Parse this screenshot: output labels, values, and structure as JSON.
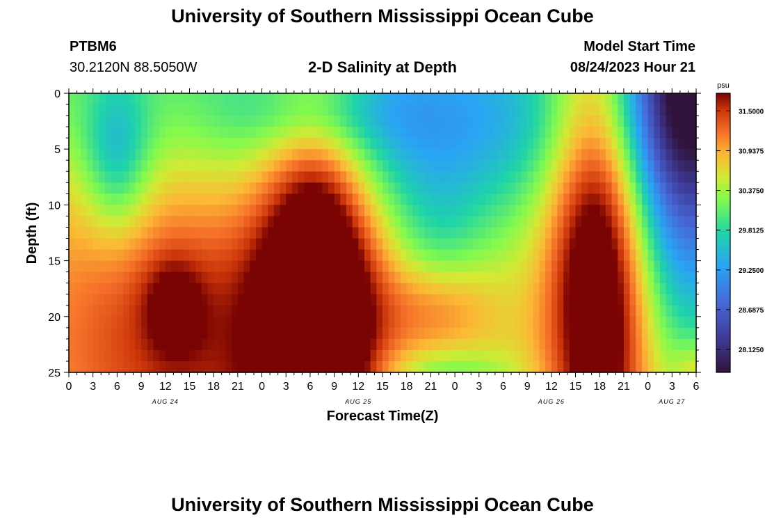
{
  "header": {
    "title": "University of Southern Mississippi Ocean Cube",
    "station_id": "PTBM6",
    "coordinates": "30.2120N  88.5050W",
    "subtitle": "2-D Salinity at Depth",
    "model_start_label": "Model Start Time",
    "model_start_value": "08/24/2023 Hour 21"
  },
  "footer": {
    "title": "University of Southern Mississippi Ocean Cube"
  },
  "chart_data": {
    "type": "heatmap",
    "title": "2-D Salinity at Depth",
    "xlabel": "Forecast Time(Z)",
    "ylabel": "Depth (ft)",
    "x_start_hour": 0,
    "x_end_hour": 78,
    "x_ticks": [
      {
        "hour": 0,
        "label": "0"
      },
      {
        "hour": 3,
        "label": "3"
      },
      {
        "hour": 6,
        "label": "6"
      },
      {
        "hour": 9,
        "label": "9"
      },
      {
        "hour": 12,
        "label": "12"
      },
      {
        "hour": 15,
        "label": "15"
      },
      {
        "hour": 18,
        "label": "18"
      },
      {
        "hour": 21,
        "label": "21"
      },
      {
        "hour": 24,
        "label": "0"
      },
      {
        "hour": 27,
        "label": "3"
      },
      {
        "hour": 30,
        "label": "6"
      },
      {
        "hour": 33,
        "label": "9"
      },
      {
        "hour": 36,
        "label": "12"
      },
      {
        "hour": 39,
        "label": "15"
      },
      {
        "hour": 42,
        "label": "18"
      },
      {
        "hour": 45,
        "label": "21"
      },
      {
        "hour": 48,
        "label": "0"
      },
      {
        "hour": 51,
        "label": "3"
      },
      {
        "hour": 54,
        "label": "6"
      },
      {
        "hour": 57,
        "label": "9"
      },
      {
        "hour": 60,
        "label": "12"
      },
      {
        "hour": 63,
        "label": "15"
      },
      {
        "hour": 66,
        "label": "18"
      },
      {
        "hour": 69,
        "label": "21"
      },
      {
        "hour": 72,
        "label": "0"
      },
      {
        "hour": 75,
        "label": "3"
      },
      {
        "hour": 78,
        "label": "6"
      }
    ],
    "day_labels": [
      {
        "hour": 12,
        "label": "AUG 24"
      },
      {
        "hour": 36,
        "label": "AUG 25"
      },
      {
        "hour": 60,
        "label": "AUG 26"
      },
      {
        "hour": 75,
        "label": "AUG 27"
      }
    ],
    "y_ticks": [
      0,
      5,
      10,
      15,
      20,
      25
    ],
    "ylim": [
      0,
      25
    ],
    "colorbar": {
      "unit": "psu",
      "vmin": 27.8,
      "vmax": 31.75,
      "tick_values": [
        31.5,
        30.9375,
        30.375,
        29.8125,
        29.25,
        28.6875,
        28.125
      ],
      "tick_labels": [
        "31.5000",
        "30.9375",
        "30.3750",
        "29.8125",
        "29.2500",
        "28.6875",
        "28.1250"
      ]
    },
    "features": [
      {
        "type": "background",
        "value": 30.35
      },
      {
        "type": "tgrad",
        "a": 0.25,
        "depth": 6
      },
      {
        "type": "gauss",
        "t": 16,
        "d": 22,
        "amp": 1.0,
        "st": 15,
        "sd": 11
      },
      {
        "type": "gauss",
        "t": 6,
        "d": 6,
        "amp": -0.9,
        "st": 3,
        "sd": 5
      },
      {
        "type": "gauss",
        "t": 13,
        "d": 19,
        "amp": 0.6,
        "st": 2.5,
        "sd": 3
      },
      {
        "type": "gauss",
        "t": 31,
        "d": 18,
        "amp": 2.0,
        "st": 5,
        "sd": 14
      },
      {
        "type": "gauss",
        "t": 31,
        "d": 2,
        "amp": -0.4,
        "st": 7,
        "sd": 2.5
      },
      {
        "type": "gauss",
        "t": 44,
        "d": 4,
        "amp": -1.0,
        "st": 16,
        "sd": 7
      },
      {
        "type": "gauss",
        "t": 46,
        "d": 14,
        "amp": -0.4,
        "st": 4,
        "sd": 5
      },
      {
        "type": "gauss",
        "t": 46,
        "d": 19,
        "amp": 0.6,
        "st": 5,
        "sd": 3
      },
      {
        "type": "gauss",
        "t": 47,
        "d": 25,
        "amp": -0.5,
        "st": 6,
        "sd": 1.5
      },
      {
        "type": "gauss",
        "t": 66,
        "d": 15,
        "amp": 1.9,
        "st": 4.5,
        "sd": 16
      },
      {
        "type": "gauss",
        "t": 77,
        "d": 0,
        "amp": -2.6,
        "st": 6,
        "sd": 14
      },
      {
        "type": "gauss",
        "t": 78,
        "d": 25,
        "amp": 0.5,
        "st": 2,
        "sd": 2
      }
    ]
  }
}
